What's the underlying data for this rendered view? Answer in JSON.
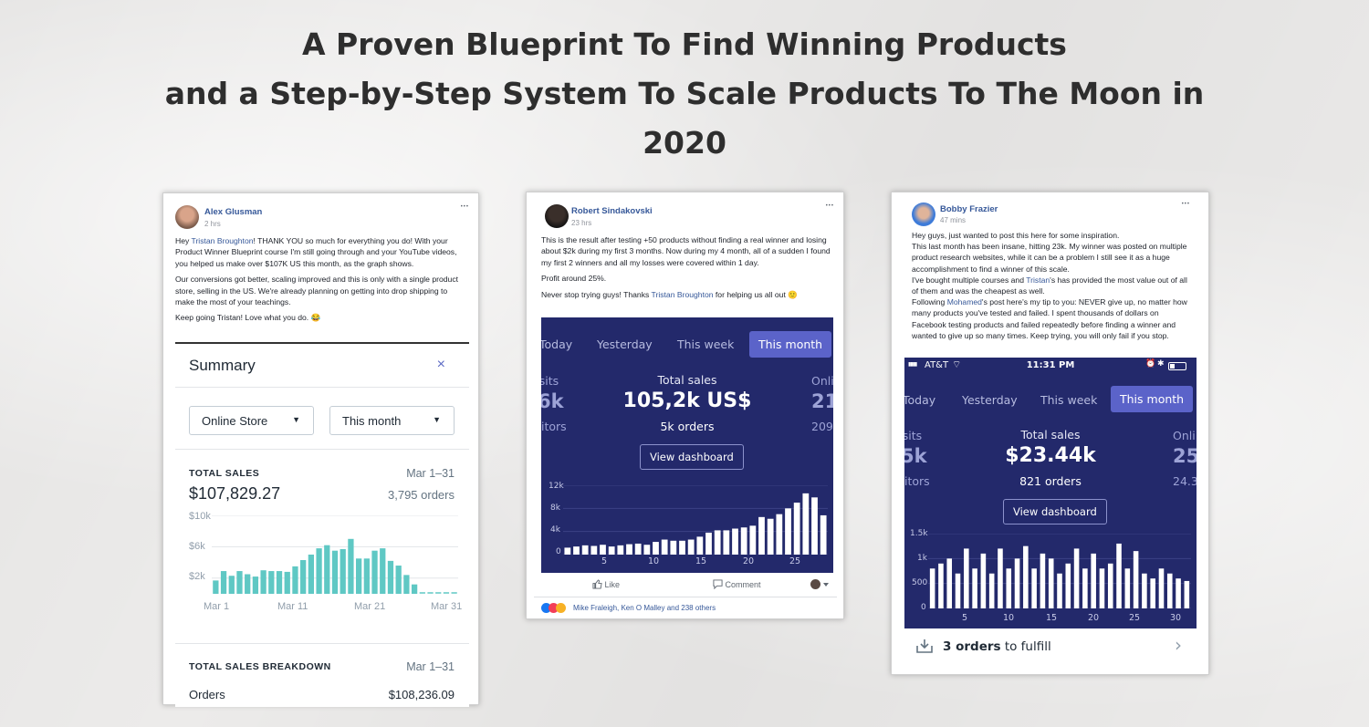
{
  "headline": {
    "line1": "A Proven Blueprint To Find Winning Products",
    "line2": "and a Step-by-Step System To Scale Products To The Moon in",
    "line3": "2020"
  },
  "post1": {
    "name": "Alex Glusman",
    "time": "2 hrs",
    "dots": "•••",
    "p1_a": "Hey ",
    "p1_link": "Tristan Broughton",
    "p1_b": "! THANK YOU so much for everything you do! With your Product Winner Blueprint course I'm still going through and your YouTube videos, you helped us make over $107K US this month, as the graph shows.",
    "p2": "Our conversions got better, scaling improved and this is only with a single product store, selling in the US. We're already planning on getting into drop shipping to make the most of your teachings.",
    "p3": "Keep going Tristan! Love what you do. 😂",
    "summary": {
      "title": "Summary",
      "close": "×",
      "store_select": "Online Store",
      "period_select": "This month",
      "caret": "▼",
      "total_sales_label": "TOTAL SALES",
      "date_range": "Mar 1–31",
      "total_sales": "$107,829.27",
      "orders": "3,795 orders",
      "y_labels": [
        "$10k",
        "$6k",
        "$2k"
      ],
      "x_labels": [
        "Mar 1",
        "Mar 11",
        "Mar 21",
        "Mar 31"
      ],
      "breakdown_label": "TOTAL SALES BREAKDOWN",
      "breakdown_date": "Mar 1–31",
      "orders_label": "Orders",
      "orders_value": "$108,236.09"
    }
  },
  "post2": {
    "name": "Robert Sindakovski",
    "time": "23 hrs",
    "dots": "•••",
    "p1": "This is the result after testing +50 products without finding a real winner and losing about $2k during my first 3 months. Now during my 4 month, all of a sudden I found my first 2 winners and all my losses were covered within 1 day.",
    "p2": "Profit around 25%.",
    "p3_a": "Never stop trying guys! Thanks ",
    "p3_link": "Tristan Broughton",
    "p3_b": " for helping us all out 🙂",
    "dash": {
      "tabs": [
        "Today",
        "Yesterday",
        "This week",
        "This month"
      ],
      "left_top": "Visits",
      "left_big": "6k",
      "left_bottom": "itors",
      "kpi_label": "Total sales",
      "kpi_value": "105,2k US$",
      "kpi_sub": "5k orders",
      "right_top": "Onli",
      "right_big": "21",
      "right_bottom": "209",
      "button": "View dashboard",
      "y_labels": [
        "12k",
        "8k",
        "4k",
        "0"
      ],
      "x_labels": [
        "5",
        "10",
        "15",
        "20",
        "25"
      ]
    },
    "like": "Like",
    "comment": "Comment",
    "reactions": "Mike Fraleigh, Ken O Malley and 238 others"
  },
  "post3": {
    "name": "Bobby Frazier",
    "time": "47 mins",
    "dots": "•••",
    "l1": "Hey guys, just wanted to post this here for some inspiration.",
    "l2": "This last month has been insane, hitting 23k. My winner was posted on multiple product research websites, while it can be a problem I still see it as a huge accomplishment to find a winner of this scale.",
    "l3_a": "I've bought multiple courses and ",
    "l3_link": "Tristan",
    "l3_b": "'s has provided the most value out of all of them and was the cheapest as well.",
    "l4_a": "Following ",
    "l4_link": "Mohamed",
    "l4_b": "'s post here's my tip to you: NEVER give up, no matter how many products you've tested and failed. I spent thousands of dollars on Facebook testing products and failed repeatedly before finding a winner and wanted to give up so many times. Keep trying, you will only fail if you stop.",
    "status": {
      "carrier": "AT&T",
      "time": "11:31 PM"
    },
    "dash": {
      "tabs": [
        "Today",
        "Yesterday",
        "This week",
        "This month"
      ],
      "left_top": "Visits",
      "left_big": "5k",
      "left_bottom": "itors",
      "kpi_label": "Total sales",
      "kpi_value": "$23.44k",
      "kpi_sub": "821 orders",
      "right_top": "Onli",
      "right_big": "25",
      "right_bottom": "24.3",
      "button": "View dashboard",
      "y_labels": [
        "1.5k",
        "1k",
        "500",
        "0"
      ],
      "x_labels": [
        "5",
        "10",
        "15",
        "20",
        "25",
        "30"
      ]
    },
    "fulfill_count": "3 orders",
    "fulfill_text": " to fulfill",
    "chevron": "›"
  },
  "chart_data": [
    {
      "type": "bar",
      "ylim": [
        0,
        10000
      ],
      "x": [
        1,
        2,
        3,
        4,
        5,
        6,
        7,
        8,
        9,
        10,
        11,
        12,
        13,
        14,
        15,
        16,
        17,
        18,
        19,
        20,
        21,
        22,
        23,
        24,
        25,
        26,
        27,
        28,
        29,
        30,
        31
      ],
      "values": [
        1700,
        2900,
        2300,
        2900,
        2500,
        2200,
        3000,
        2900,
        2900,
        2800,
        3500,
        4300,
        5000,
        5800,
        6200,
        5500,
        5700,
        7000,
        4500,
        4500,
        5500,
        5800,
        4200,
        3600,
        2400,
        1200,
        0,
        0,
        0,
        0,
        0
      ]
    },
    {
      "type": "bar",
      "ylim": [
        0,
        12000
      ],
      "x": [
        1,
        2,
        3,
        4,
        5,
        6,
        7,
        8,
        9,
        10,
        11,
        12,
        13,
        14,
        15,
        16,
        17,
        18,
        19,
        20,
        21,
        22,
        23,
        24,
        25,
        26,
        27,
        28,
        29,
        30
      ],
      "values": [
        1200,
        1400,
        1600,
        1500,
        1700,
        1400,
        1600,
        1800,
        1900,
        1700,
        2200,
        2600,
        2400,
        2400,
        2600,
        3100,
        3800,
        4200,
        4200,
        4500,
        4700,
        5000,
        6500,
        6200,
        7000,
        8000,
        9000,
        10600,
        9900,
        6800
      ]
    },
    {
      "type": "bar",
      "ylim": [
        0,
        1500
      ],
      "x": [
        1,
        2,
        3,
        4,
        5,
        6,
        7,
        8,
        9,
        10,
        11,
        12,
        13,
        14,
        15,
        16,
        17,
        18,
        19,
        20,
        21,
        22,
        23,
        24,
        25,
        26,
        27,
        28,
        29,
        30,
        31
      ],
      "values": [
        800,
        900,
        1000,
        700,
        1200,
        800,
        1100,
        700,
        1200,
        800,
        1000,
        1250,
        800,
        1100,
        1000,
        700,
        900,
        1200,
        800,
        1100,
        800,
        900,
        1300,
        800,
        1150,
        700,
        600,
        800,
        700,
        600,
        550
      ]
    }
  ]
}
